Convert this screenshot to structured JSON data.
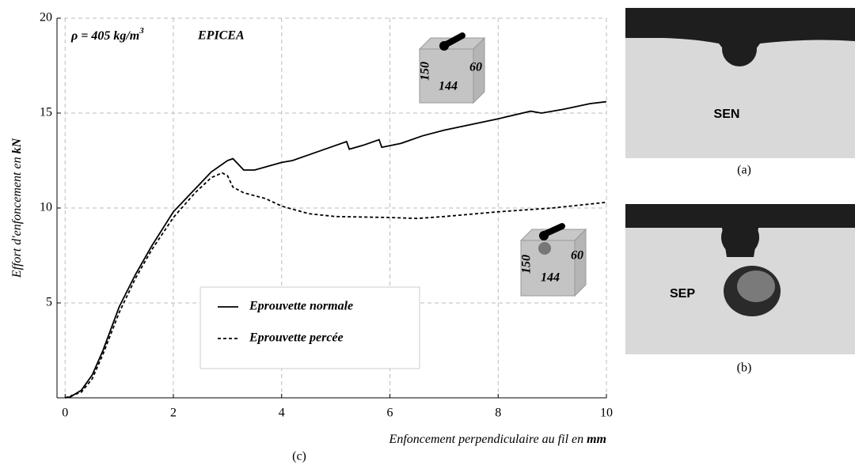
{
  "chart_data": {
    "type": "line",
    "annotation": "ρ = 405 kg/m",
    "annotation_superscript": "3",
    "species": "EPICEA",
    "xlabel": {
      "text": "Enfoncement perpendiculaire au fil en",
      "unit": "mm"
    },
    "ylabel": {
      "text": "Effort d'enfoncement en",
      "unit": "kN"
    },
    "panel_label": "(c)",
    "xlim": [
      -0.15,
      10
    ],
    "xticks": [
      0,
      2,
      4,
      6,
      8,
      10
    ],
    "ylim": [
      0,
      20
    ],
    "yticks": [
      5,
      10,
      15,
      20
    ],
    "grid": true,
    "legend": "lower center",
    "series": [
      {
        "name": "Eprouvette normale",
        "color": "#000000",
        "dash": "solid",
        "x": [
          0,
          0.1,
          0.3,
          0.5,
          0.7,
          1.0,
          1.3,
          1.6,
          2.0,
          2.4,
          2.7,
          3.0,
          3.1,
          3.2,
          3.3,
          3.5,
          4.0,
          4.2,
          4.5,
          5.0,
          5.2,
          5.25,
          5.5,
          5.8,
          5.85,
          6.2,
          6.6,
          7.0,
          8.0,
          8.6,
          8.8,
          9.2,
          9.7,
          10.0
        ],
        "values": [
          0,
          0.05,
          0.4,
          1.2,
          2.5,
          4.8,
          6.5,
          8.0,
          9.8,
          11.0,
          11.9,
          12.5,
          12.6,
          12.3,
          12.0,
          12.0,
          12.4,
          12.5,
          12.8,
          13.3,
          13.5,
          13.1,
          13.3,
          13.6,
          13.2,
          13.4,
          13.8,
          14.1,
          14.7,
          15.1,
          15.0,
          15.2,
          15.5,
          15.6
        ]
      },
      {
        "name": "Eprouvette percée",
        "color": "#000000",
        "dash": "dashed",
        "x": [
          0,
          0.3,
          0.5,
          0.7,
          1.0,
          1.3,
          1.6,
          2.0,
          2.4,
          2.7,
          2.9,
          3.0,
          3.1,
          3.3,
          3.7,
          4.0,
          4.5,
          5.0,
          6.0,
          6.5,
          7.0,
          8.0,
          9.0,
          10.0
        ],
        "values": [
          0,
          0.3,
          1.0,
          2.3,
          4.5,
          6.3,
          7.8,
          9.5,
          10.8,
          11.6,
          11.85,
          11.7,
          11.1,
          10.8,
          10.5,
          10.1,
          9.7,
          9.55,
          9.5,
          9.45,
          9.55,
          9.8,
          10.0,
          10.3
        ]
      }
    ],
    "specimens": [
      {
        "height": "150",
        "depth": "60",
        "width": "144"
      },
      {
        "height": "150",
        "depth": "60",
        "width": "144"
      }
    ]
  },
  "photos": [
    {
      "marking": "SEN",
      "label": "(a)"
    },
    {
      "marking": "SEP",
      "label": "(b)"
    }
  ]
}
